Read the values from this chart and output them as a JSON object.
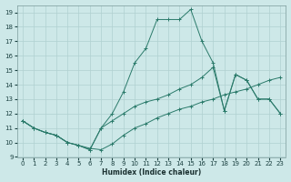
{
  "xlabel": "Humidex (Indice chaleur)",
  "xlim": [
    -0.5,
    23.5
  ],
  "ylim": [
    9,
    19.5
  ],
  "yticks": [
    9,
    10,
    11,
    12,
    13,
    14,
    15,
    16,
    17,
    18,
    19
  ],
  "xticks": [
    0,
    1,
    2,
    3,
    4,
    5,
    6,
    7,
    8,
    9,
    10,
    11,
    12,
    13,
    14,
    15,
    16,
    17,
    18,
    19,
    20,
    21,
    22,
    23
  ],
  "bg_color": "#cde8e8",
  "grid_color": "#b0d0d0",
  "line_color": "#2a7a6a",
  "series": [
    {
      "x": [
        0,
        1,
        2,
        3,
        4,
        5,
        6,
        7,
        8,
        9,
        10,
        11,
        12,
        13,
        14,
        15,
        16,
        17,
        18,
        19,
        20,
        21,
        22,
        23
      ],
      "y": [
        11.5,
        11.0,
        10.7,
        10.5,
        10.0,
        9.8,
        9.5,
        11.0,
        12.0,
        13.5,
        15.5,
        16.5,
        18.5,
        18.5,
        18.5,
        19.2,
        17.0,
        15.5,
        12.2,
        14.7,
        14.3,
        13.0,
        13.0,
        12.0
      ]
    },
    {
      "x": [
        0,
        1,
        2,
        3,
        4,
        5,
        6,
        7,
        8,
        9,
        10,
        11,
        12,
        13,
        14,
        15,
        16,
        17,
        18,
        19,
        20,
        21,
        22,
        23
      ],
      "y": [
        11.5,
        11.0,
        10.7,
        10.5,
        10.0,
        9.8,
        9.5,
        11.0,
        11.5,
        12.0,
        12.5,
        12.8,
        13.0,
        13.3,
        13.7,
        14.0,
        14.5,
        15.2,
        12.2,
        14.7,
        14.3,
        13.0,
        13.0,
        12.0
      ]
    },
    {
      "x": [
        0,
        1,
        2,
        3,
        4,
        5,
        6,
        7,
        8,
        9,
        10,
        11,
        12,
        13,
        14,
        15,
        16,
        17,
        18,
        19,
        20,
        21,
        22,
        23
      ],
      "y": [
        11.5,
        11.0,
        10.7,
        10.5,
        10.0,
        9.8,
        9.6,
        9.5,
        9.9,
        10.5,
        11.0,
        11.3,
        11.7,
        12.0,
        12.3,
        12.5,
        12.8,
        13.0,
        13.3,
        13.5,
        13.7,
        14.0,
        14.3,
        14.5
      ]
    }
  ]
}
